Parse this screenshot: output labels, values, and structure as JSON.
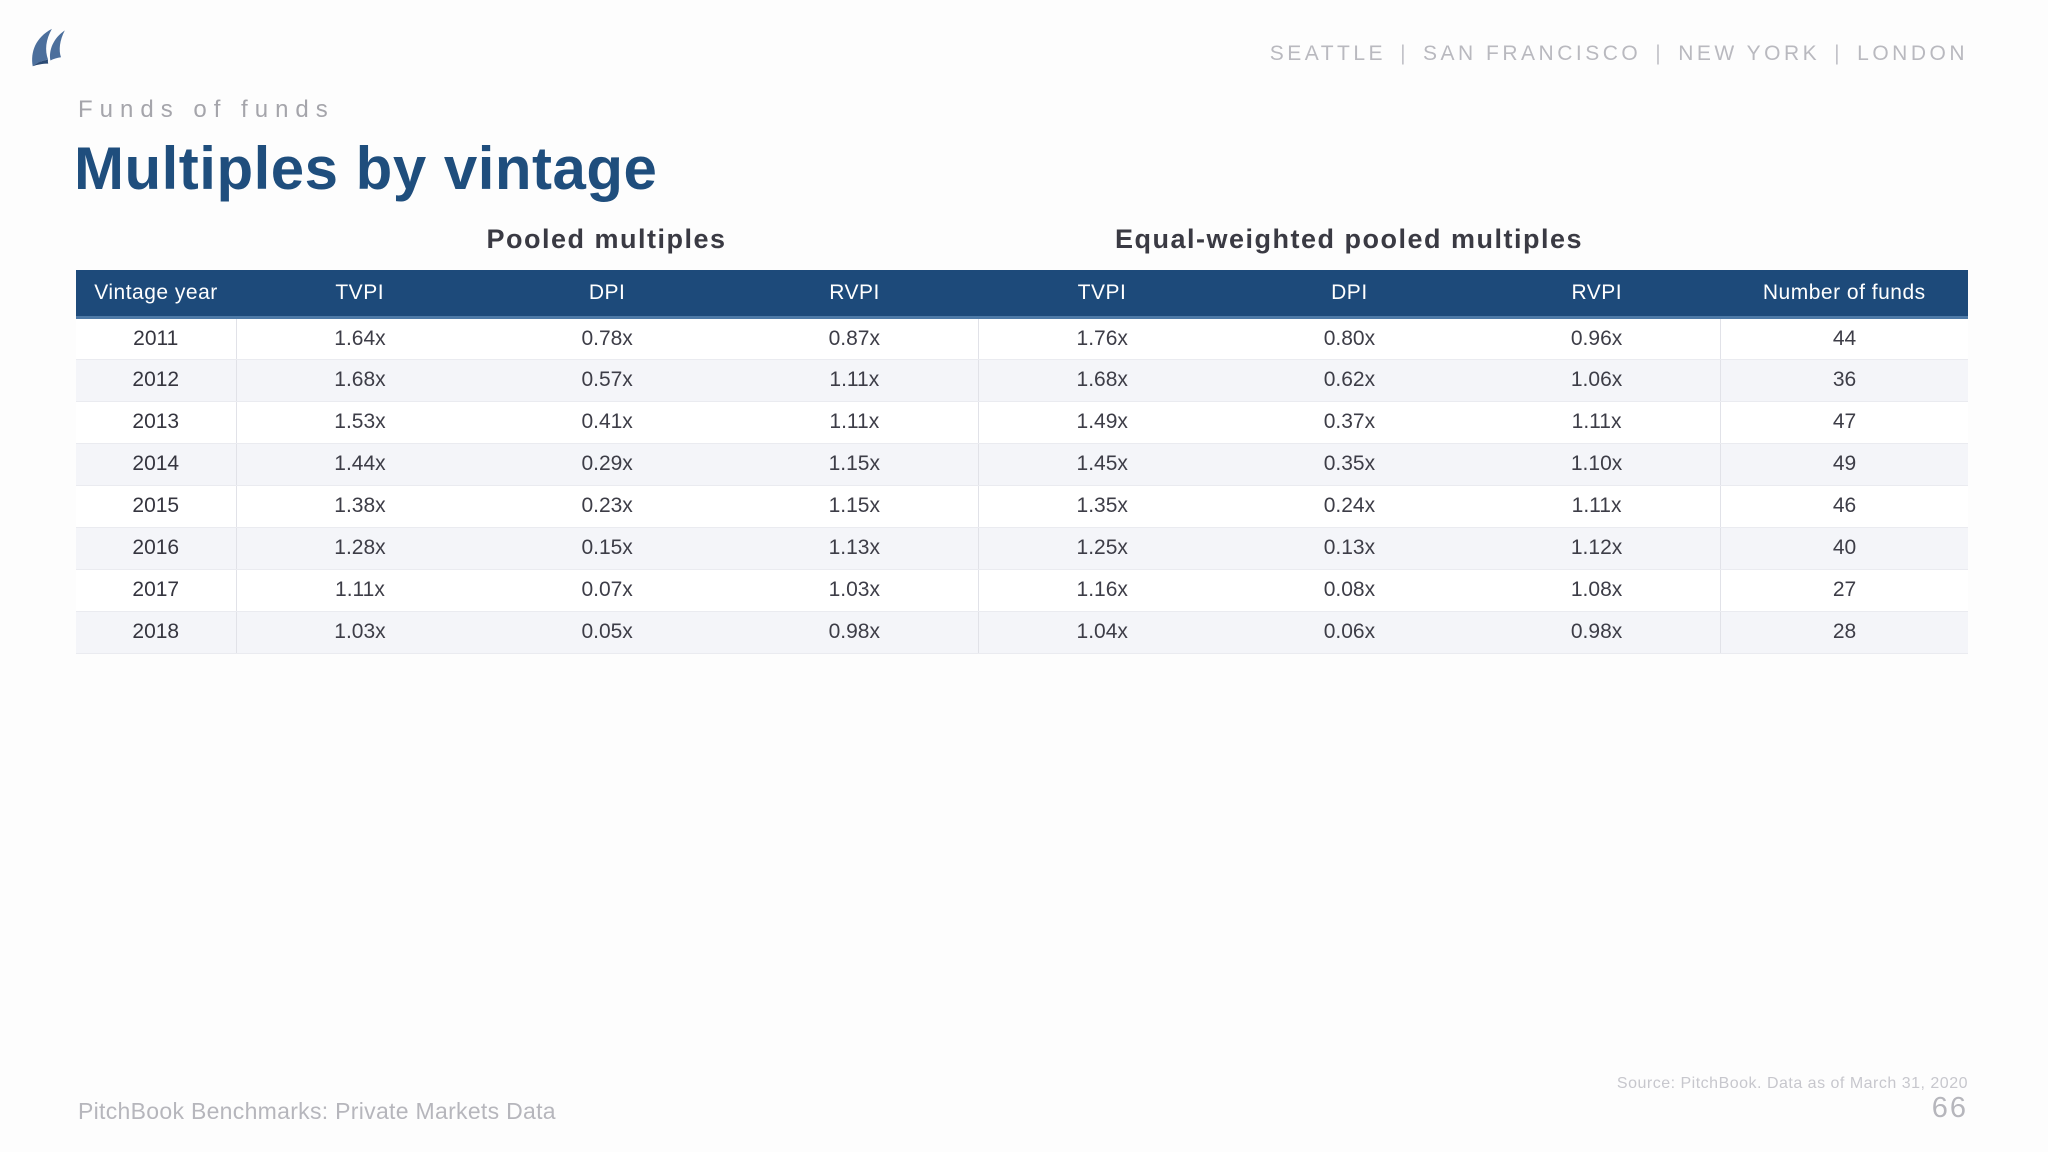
{
  "header": {
    "locations": [
      "SEATTLE",
      "SAN FRANCISCO",
      "NEW YORK",
      "LONDON"
    ],
    "locations_separator": "|"
  },
  "eyebrow": "Funds of funds",
  "title": "Multiples by vintage",
  "table": {
    "group_headings": {
      "pooled": "Pooled multiples",
      "equal_weighted": "Equal-weighted pooled multiples"
    },
    "columns": [
      "Vintage year",
      "TVPI",
      "DPI",
      "RVPI",
      "TVPI",
      "DPI",
      "RVPI",
      "Number of funds"
    ],
    "rows": [
      [
        "2011",
        "1.64x",
        "0.78x",
        "0.87x",
        "1.76x",
        "0.80x",
        "0.96x",
        "44"
      ],
      [
        "2012",
        "1.68x",
        "0.57x",
        "1.11x",
        "1.68x",
        "0.62x",
        "1.06x",
        "36"
      ],
      [
        "2013",
        "1.53x",
        "0.41x",
        "1.11x",
        "1.49x",
        "0.37x",
        "1.11x",
        "47"
      ],
      [
        "2014",
        "1.44x",
        "0.29x",
        "1.15x",
        "1.45x",
        "0.35x",
        "1.10x",
        "49"
      ],
      [
        "2015",
        "1.38x",
        "0.23x",
        "1.15x",
        "1.35x",
        "0.24x",
        "1.11x",
        "46"
      ],
      [
        "2016",
        "1.28x",
        "0.15x",
        "1.13x",
        "1.25x",
        "0.13x",
        "1.12x",
        "40"
      ],
      [
        "2017",
        "1.11x",
        "0.07x",
        "1.03x",
        "1.16x",
        "0.08x",
        "1.08x",
        "27"
      ],
      [
        "2018",
        "1.03x",
        "0.05x",
        "0.98x",
        "1.04x",
        "0.06x",
        "0.98x",
        "28"
      ]
    ]
  },
  "footer": {
    "left_text": "PitchBook Benchmarks: Private Markets Data",
    "source_note": "Source: PitchBook. Data as of March 31, 2020",
    "page_number": "66"
  },
  "colors": {
    "brand_navy": "#1f4e7d",
    "table_header_bg": "#1d4a7a",
    "table_header_accent_line": "#4e7aa7",
    "row_stripe": "#f4f5f9",
    "logo_blue": "#4c6f9c",
    "muted_gray": "#b6b6bc"
  }
}
